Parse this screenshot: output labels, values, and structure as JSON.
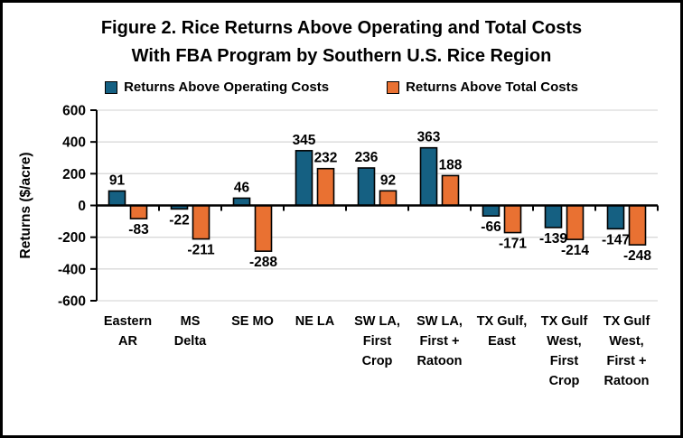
{
  "chart_data": {
    "type": "bar",
    "title": "Figure 2. Rice Returns Above Operating and Total Costs With FBA Program by Southern U.S. Rice Region",
    "title_lines": [
      "Figure 2. Rice Returns Above Operating and Total Costs",
      "With FBA Program by Southern U.S. Rice Region"
    ],
    "ylabel": "Returns ($/acre)",
    "ylim": [
      -600,
      600
    ],
    "ytick_step": 200,
    "ytick_labels": [
      "600",
      "400",
      "200",
      "0",
      "-200",
      "-400",
      "-600"
    ],
    "grid": true,
    "legend_position": "top",
    "categories": [
      "Eastern AR",
      "MS Delta",
      "SE MO",
      "NE LA",
      "SW LA, First Crop",
      "SW LA, First + Ratoon",
      "TX Gulf, East",
      "TX Gulf West, First Crop",
      "TX Gulf West, First + Ratoon"
    ],
    "category_label_lines": [
      [
        "Eastern",
        "AR"
      ],
      [
        "MS",
        "Delta"
      ],
      [
        "SE MO"
      ],
      [
        "NE LA"
      ],
      [
        "SW LA,",
        "First",
        "Crop"
      ],
      [
        "SW LA,",
        "First +",
        "Ratoon"
      ],
      [
        "TX Gulf,",
        "East"
      ],
      [
        "TX Gulf",
        "West,",
        "First",
        "Crop"
      ],
      [
        "TX Gulf",
        "West,",
        "First +",
        "Ratoon"
      ]
    ],
    "series": [
      {
        "name": "Returns Above Operating Costs",
        "color": "#156082",
        "values": [
          91,
          -22,
          46,
          345,
          236,
          363,
          -66,
          -139,
          -147
        ]
      },
      {
        "name": "Returns Above Total Costs",
        "color": "#E97132",
        "values": [
          -83,
          -211,
          -288,
          232,
          92,
          188,
          -171,
          -214,
          -248
        ]
      }
    ],
    "colors": {
      "grid": "#D9D9D9",
      "axis": "#000000",
      "bar_outline": "#000000",
      "text": "#000000",
      "border": "#000000",
      "background": "#FFFFFF"
    }
  }
}
